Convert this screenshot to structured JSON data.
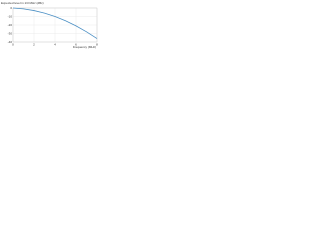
{
  "chart_data": {
    "type": "line",
    "ylabel": "Expected level in 1/3 MHz (dBc)",
    "xlabel": "Frequency (MHz)",
    "x": [
      0,
      1,
      2,
      3,
      4,
      5,
      6,
      7,
      8
    ],
    "series": [
      {
        "name": "Expected level",
        "color": "#4a8fc4",
        "values": [
          0,
          -1,
          -3,
          -6,
          -10,
          -15,
          -21,
          -28,
          -36
        ]
      }
    ],
    "xlim": [
      0,
      8
    ],
    "xticks": [
      0,
      2,
      4,
      6,
      8
    ],
    "ylim": [
      -40,
      0
    ],
    "yticks": [
      -40,
      -30,
      -20,
      -10,
      0
    ],
    "grid": true
  }
}
